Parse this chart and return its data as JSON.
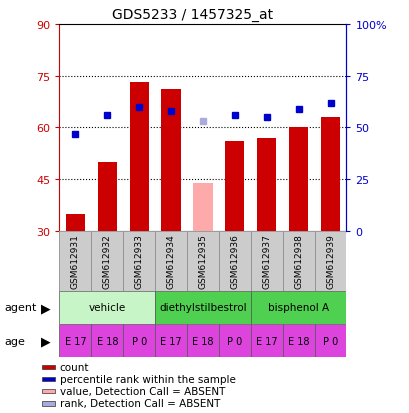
{
  "title": "GDS5233 / 1457325_at",
  "samples": [
    "GSM612931",
    "GSM612932",
    "GSM612933",
    "GSM612934",
    "GSM612935",
    "GSM612936",
    "GSM612937",
    "GSM612938",
    "GSM612939"
  ],
  "count_values": [
    35,
    50,
    73,
    71,
    null,
    56,
    57,
    60,
    63
  ],
  "rank_values": [
    47,
    56,
    60,
    58,
    null,
    56,
    55,
    59,
    62
  ],
  "absent_count": [
    null,
    null,
    null,
    null,
    44,
    null,
    null,
    null,
    null
  ],
  "absent_rank": [
    null,
    null,
    null,
    null,
    53,
    null,
    null,
    null,
    null
  ],
  "ylim": [
    30,
    90
  ],
  "y2lim": [
    0,
    100
  ],
  "yticks": [
    30,
    45,
    60,
    75,
    90
  ],
  "y2ticks": [
    0,
    25,
    50,
    75,
    100
  ],
  "y2tick_labels": [
    "0",
    "25",
    "50",
    "75",
    "100%"
  ],
  "agents": [
    {
      "label": "vehicle",
      "start": 0,
      "end": 3,
      "color": "#c8f5c8"
    },
    {
      "label": "diethylstilbestrol",
      "start": 3,
      "end": 6,
      "color": "#50d050"
    },
    {
      "label": "bisphenol A",
      "start": 6,
      "end": 9,
      "color": "#50d050"
    }
  ],
  "ages": [
    "E 17",
    "E 18",
    "P 0",
    "E 17",
    "E 18",
    "P 0",
    "E 17",
    "E 18",
    "P 0"
  ],
  "age_color": "#dd44dd",
  "bar_color": "#cc0000",
  "rank_color": "#0000cc",
  "absent_bar_color": "#ffaaaa",
  "absent_rank_color": "#aaaadd",
  "bar_bottom": 30,
  "grid_color": "#555555",
  "bg_color": "#ffffff",
  "plot_bg": "#ffffff",
  "label_color_left": "#cc0000",
  "label_color_right": "#0000cc",
  "legend_items": [
    {
      "color": "#cc0000",
      "label": "count"
    },
    {
      "color": "#0000cc",
      "label": "percentile rank within the sample"
    },
    {
      "color": "#ffaaaa",
      "label": "value, Detection Call = ABSENT"
    },
    {
      "color": "#aaaadd",
      "label": "rank, Detection Call = ABSENT"
    }
  ]
}
